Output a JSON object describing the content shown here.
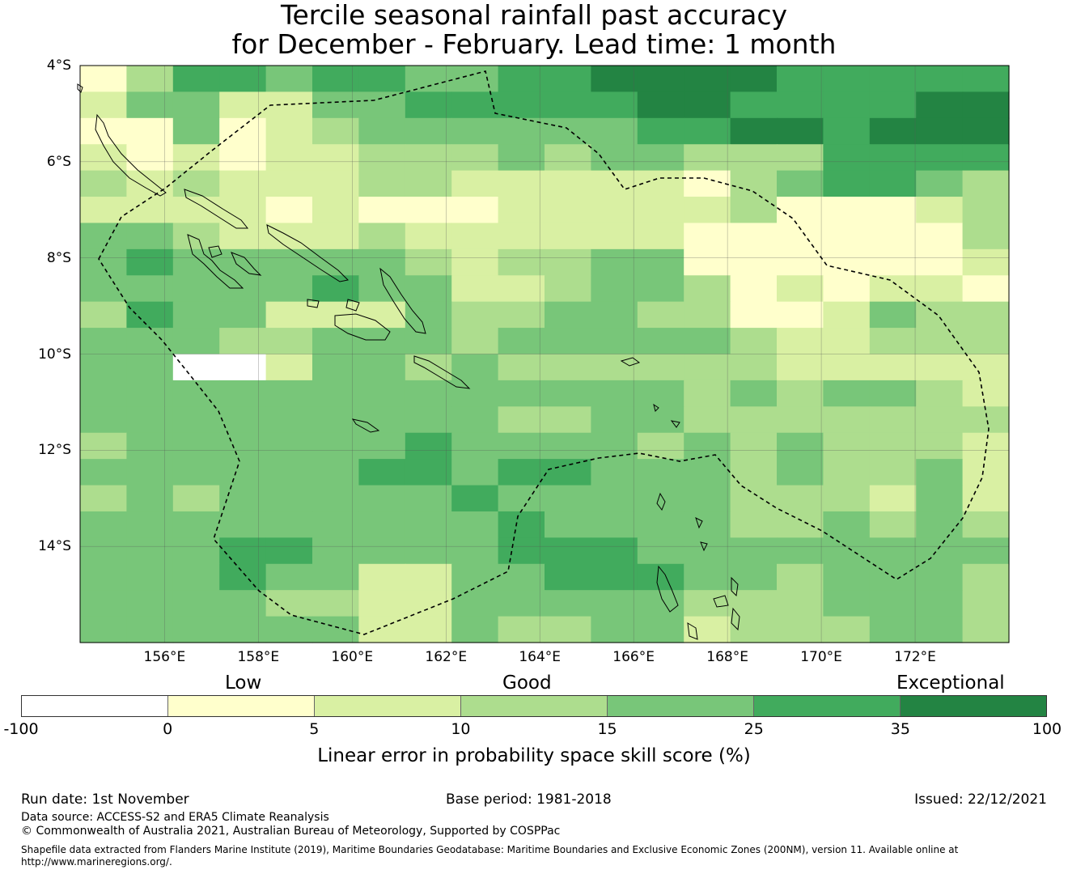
{
  "title": {
    "line1": "Tercile seasonal rainfall past accuracy",
    "line2": "for December - February. Lead time: 1 month"
  },
  "map": {
    "lon_range": [
      154.2,
      174.0
    ],
    "lat_range": [
      -16.0,
      -4.0
    ],
    "lat_ticks": [
      {
        "value": -4,
        "label": "4°S"
      },
      {
        "value": -6,
        "label": "6°S"
      },
      {
        "value": -8,
        "label": "8°S"
      },
      {
        "value": -10,
        "label": "10°S"
      },
      {
        "value": -12,
        "label": "12°S"
      },
      {
        "value": -14,
        "label": "14°S"
      }
    ],
    "lon_ticks": [
      {
        "value": 156,
        "label": "156°E"
      },
      {
        "value": 158,
        "label": "158°E"
      },
      {
        "value": 160,
        "label": "160°E"
      },
      {
        "value": 162,
        "label": "162°E"
      },
      {
        "value": 164,
        "label": "164°E"
      },
      {
        "value": 166,
        "label": "166°E"
      },
      {
        "value": 168,
        "label": "168°E"
      },
      {
        "value": 170,
        "label": "170°E"
      },
      {
        "value": 172,
        "label": "172°E"
      }
    ],
    "grid_lines": true,
    "skill_classes": {
      "bins": [
        -100,
        0,
        5,
        10,
        15,
        25,
        35,
        100
      ],
      "colors": [
        "#ffffff",
        "#ffffcc",
        "#d9f0a3",
        "#addd8e",
        "#78c679",
        "#41ab5d",
        "#238443"
      ]
    },
    "grid_rows": [
      "13554554455666655555",
      "24422445555566555566",
      "11412344444455665666",
      "21212233343443335555",
      "32322233222221345543",
      "22221211122222311123",
      "44322232222221111113",
      "45444443233441111112",
      "44444544223443121221",
      "35442224334433112433",
      "44433444344444322333",
      "44002443433333322222",
      "44444444444443434432",
      "44444444433443333333",
      "34444445444434343332",
      "44444455455444343342",
      "34344444544444333242",
      "44444444454444334343",
      "44455444455544444444",
      "44454422445554434443",
      "44443322444443334443",
      "44444422433442333443"
    ],
    "eez_outline_color": "#000000"
  },
  "category_labels": {
    "low": "Low",
    "good": "Good",
    "exceptional": "Exceptional"
  },
  "colorbar": {
    "ticks": [
      "-100",
      "0",
      "5",
      "10",
      "15",
      "25",
      "35",
      "100"
    ],
    "label": "Linear error in probability space skill score (%)"
  },
  "footer": {
    "run_date": "Run date: 1st November",
    "base_period": "Base period: 1981-2018",
    "issued": "Issued: 22/12/2021",
    "data_source": "Data source: ACCESS-S2 and ERA5 Climate Reanalysis",
    "copyright": "© Commonwealth of Australia 2021, Australian Bureau of Meteorology, Supported by COSPPac",
    "shapefile_line1": "Shapefile data extracted from Flanders Marine Institute (2019), Maritime Boundaries Geodatabase: Maritime Boundaries and Exclusive Economic Zones (200NM), version 11. Available online at",
    "shapefile_line2": "http://www.marineregions.org/."
  }
}
